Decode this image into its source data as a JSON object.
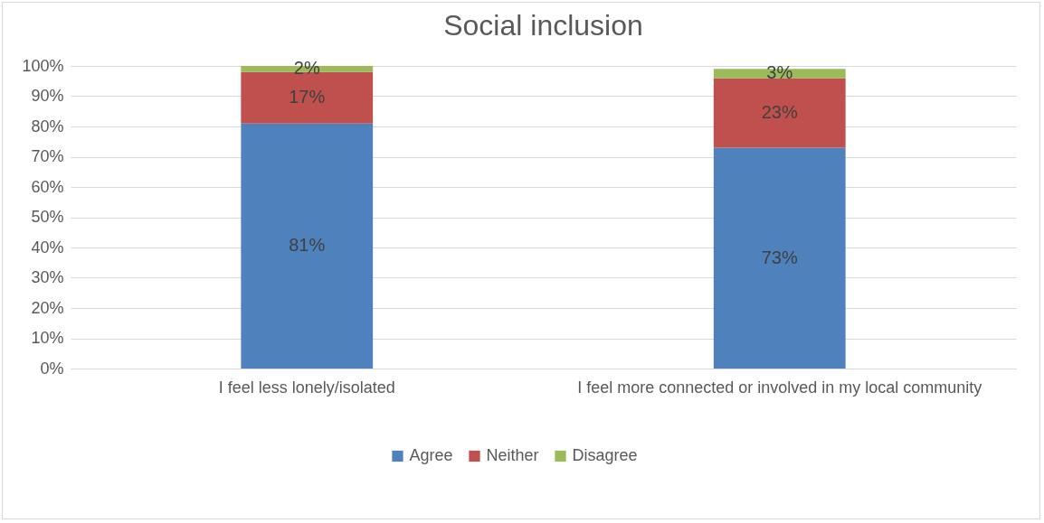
{
  "chart_data": {
    "type": "bar",
    "title": "Social inclusion",
    "stacked": true,
    "categories": [
      "I feel less lonely/isolated",
      "I feel more connected or involved in my local community"
    ],
    "series": [
      {
        "name": "Agree",
        "color": "#4f81bd",
        "values": [
          81,
          73
        ],
        "value_labels": [
          "81%",
          "73%"
        ]
      },
      {
        "name": "Neither",
        "color": "#c0504d",
        "values": [
          17,
          23
        ],
        "value_labels": [
          "17%",
          "23%"
        ]
      },
      {
        "name": "Disagree",
        "color": "#9bbb59",
        "values": [
          2,
          3
        ],
        "value_labels": [
          "2%",
          "3%"
        ]
      }
    ],
    "ylim": [
      0,
      100
    ],
    "yticks": [
      {
        "value": 0,
        "label": "0%"
      },
      {
        "value": 10,
        "label": "10%"
      },
      {
        "value": 20,
        "label": "20%"
      },
      {
        "value": 30,
        "label": "30%"
      },
      {
        "value": 40,
        "label": "40%"
      },
      {
        "value": 50,
        "label": "50%"
      },
      {
        "value": 60,
        "label": "60%"
      },
      {
        "value": 70,
        "label": "70%"
      },
      {
        "value": 80,
        "label": "80%"
      },
      {
        "value": 90,
        "label": "90%"
      },
      {
        "value": 100,
        "label": "100%"
      }
    ],
    "grid": "y",
    "legend": "bottom"
  }
}
